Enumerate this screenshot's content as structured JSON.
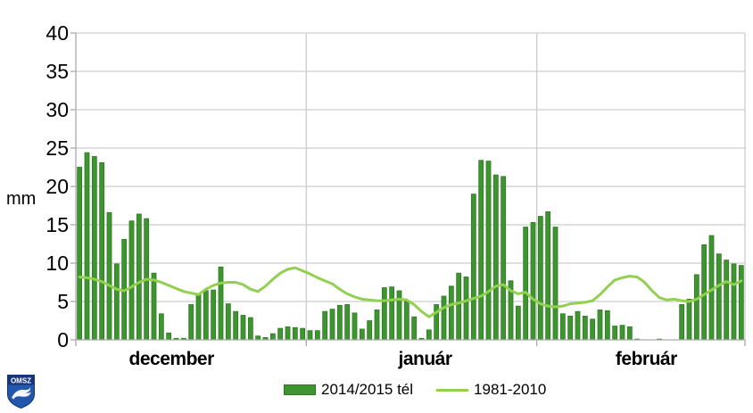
{
  "chart_data": {
    "type": "bar",
    "title": "",
    "ylabel": "mm",
    "xlabel": "",
    "ylim": [
      0,
      40
    ],
    "yticks": [
      0,
      5,
      10,
      15,
      20,
      25,
      30,
      35,
      40
    ],
    "grid": true,
    "legend_position": "bottom-center",
    "months": [
      {
        "label": "december",
        "days": 31
      },
      {
        "label": "január",
        "days": 31
      },
      {
        "label": "február",
        "days": 28
      }
    ],
    "series": [
      {
        "name": "2014/2015 tél",
        "type": "bar",
        "color": "#3d9431",
        "values": [
          22.5,
          24.4,
          23.9,
          23.1,
          16.6,
          9.9,
          13.1,
          15.5,
          16.4,
          15.8,
          8.7,
          3.4,
          0.9,
          0.2,
          0.2,
          4.6,
          5.9,
          6.4,
          6.5,
          9.5,
          4.7,
          3.7,
          3.2,
          2.9,
          0.5,
          0.3,
          0.8,
          1.5,
          1.7,
          1.6,
          1.5,
          1.2,
          1.2,
          3.7,
          4.0,
          4.5,
          4.6,
          3.5,
          1.4,
          2.5,
          3.9,
          6.8,
          6.9,
          6.4,
          5.0,
          3.0,
          0.2,
          1.3,
          4.6,
          5.7,
          7.0,
          8.7,
          8.2,
          19.0,
          23.4,
          23.3,
          21.5,
          21.3,
          7.7,
          4.4,
          14.7,
          15.3,
          16.1,
          16.7,
          14.7,
          3.4,
          3.1,
          3.7,
          3.1,
          2.7,
          3.9,
          3.8,
          1.8,
          1.9,
          1.7,
          0.1,
          0,
          0,
          0.1,
          0,
          0,
          4.6,
          5.3,
          8.5,
          12.4,
          13.6,
          11.2,
          10.4,
          9.9,
          9.7
        ]
      },
      {
        "name": "1981-2010",
        "type": "line",
        "color": "#92d050",
        "values": [
          8.2,
          8.1,
          7.9,
          7.6,
          7.1,
          6.6,
          6.4,
          6.9,
          7.5,
          7.9,
          7.8,
          7.5,
          7.1,
          6.7,
          6.3,
          6.1,
          5.9,
          6.6,
          7.1,
          7.4,
          7.5,
          7.5,
          7.2,
          6.6,
          6.3,
          7.0,
          7.9,
          8.7,
          9.2,
          9.4,
          9.0,
          8.6,
          8.1,
          7.7,
          7.3,
          6.6,
          6.0,
          5.6,
          5.3,
          5.2,
          5.1,
          5.1,
          5.2,
          5.3,
          5.2,
          4.6,
          3.7,
          3.0,
          3.6,
          4.2,
          4.6,
          4.8,
          5.1,
          5.4,
          5.7,
          6.3,
          7.0,
          7.2,
          6.4,
          6.0,
          6.2,
          5.3,
          4.7,
          4.4,
          4.3,
          4.4,
          4.7,
          4.8,
          4.9,
          5.1,
          5.9,
          6.9,
          7.8,
          8.1,
          8.3,
          8.2,
          7.5,
          6.4,
          5.5,
          5.2,
          5.3,
          5.1,
          5.0,
          5.3,
          5.9,
          6.5,
          7.1,
          7.6,
          7.2,
          7.7
        ]
      }
    ]
  },
  "logo": {
    "text": "OMSZ"
  },
  "colors": {
    "bar": "#3d9431",
    "bar_border": "#2e7a21",
    "line": "#92d050",
    "grid": "#cdcdcd",
    "axis": "#aaaaaa",
    "text": "#000000",
    "logo_navy": "#17357c",
    "logo_blue": "#2257ab"
  }
}
